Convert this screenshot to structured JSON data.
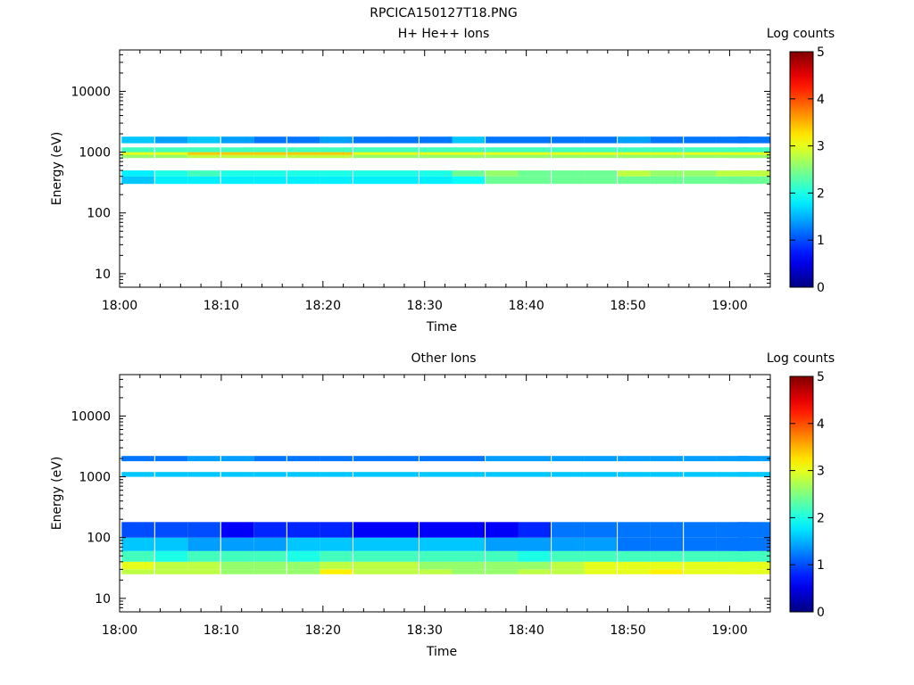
{
  "figure_title": "RPCICA150127T18.PNG",
  "chart_data": [
    {
      "type": "heatmap",
      "title": "H+ He++ Ions",
      "xlabel": "Time",
      "ylabel": "Energy (eV)",
      "x_ticks": [
        "18:00",
        "18:10",
        "18:20",
        "18:30",
        "18:40",
        "18:50",
        "19:00"
      ],
      "y_ticks": [
        "10",
        "100",
        "1000",
        "10000"
      ],
      "x_range_minutes": [
        0,
        64
      ],
      "y_range_ev": [
        6,
        48000
      ],
      "y_scale": "log",
      "colorbar": {
        "label": "Log counts",
        "ticks": [
          "0",
          "1",
          "2",
          "3",
          "4",
          "5"
        ],
        "range": [
          0,
          5
        ],
        "colormap": "jet"
      },
      "time_columns_minutes": [
        1.8,
        5.1,
        8.3,
        11.6,
        14.8,
        18.1,
        21.3,
        24.6,
        27.8,
        31.1,
        34.3,
        37.6,
        40.8,
        44.1,
        47.3,
        50.6,
        53.8,
        57.1,
        60.3,
        62.4
      ],
      "energy_bands": [
        {
          "energy_ev": [
            800,
            1000
          ],
          "log_counts": [
            2.6,
            2.6,
            2.8,
            2.8,
            2.8,
            2.8,
            2.8,
            2.6,
            2.6,
            2.6,
            2.6,
            2.6,
            2.6,
            2.6,
            2.6,
            2.6,
            2.6,
            2.6,
            2.6,
            2.6
          ]
        },
        {
          "energy_ev": [
            900,
            1000
          ],
          "log_counts": [
            3.0,
            3.0,
            3.4,
            3.4,
            3.4,
            3.4,
            3.4,
            3.0,
            3.0,
            3.0,
            3.0,
            3.0,
            3.0,
            3.0,
            3.0,
            3.0,
            3.0,
            3.0,
            3.0,
            3.0
          ]
        },
        {
          "energy_ev": [
            1000,
            1200
          ],
          "log_counts": [
            2.2,
            2.2,
            2.2,
            2.2,
            2.2,
            2.2,
            2.2,
            2.2,
            2.2,
            2.2,
            2.2,
            2.2,
            2.2,
            2.2,
            2.2,
            2.2,
            2.2,
            2.2,
            2.2,
            2.2
          ]
        },
        {
          "energy_ev": [
            1400,
            1800
          ],
          "log_counts": [
            1.6,
            1.4,
            1.6,
            1.4,
            1.2,
            1.2,
            1.4,
            1.2,
            1.2,
            1.2,
            1.6,
            1.2,
            1.2,
            1.2,
            1.2,
            1.4,
            1.2,
            1.2,
            1.2,
            1.2
          ]
        },
        {
          "energy_ev": [
            300,
            400
          ],
          "log_counts": [
            1.6,
            1.8,
            1.8,
            1.8,
            1.8,
            1.8,
            1.8,
            1.8,
            1.8,
            1.8,
            1.9,
            2.4,
            2.4,
            2.4,
            2.4,
            2.4,
            2.4,
            2.4,
            2.4,
            2.4
          ]
        },
        {
          "energy_ev": [
            400,
            500
          ],
          "log_counts": [
            1.8,
            2.0,
            2.2,
            2.0,
            2.0,
            2.0,
            2.0,
            2.0,
            2.0,
            2.0,
            2.4,
            2.6,
            2.4,
            2.4,
            2.4,
            2.8,
            2.6,
            2.6,
            2.8,
            2.8
          ]
        }
      ]
    },
    {
      "type": "heatmap",
      "title": "Other Ions",
      "xlabel": "Time",
      "ylabel": "Energy (eV)",
      "x_ticks": [
        "18:00",
        "18:10",
        "18:20",
        "18:30",
        "18:40",
        "18:50",
        "19:00"
      ],
      "y_ticks": [
        "10",
        "100",
        "1000",
        "10000"
      ],
      "x_range_minutes": [
        0,
        64
      ],
      "y_range_ev": [
        6,
        48000
      ],
      "y_scale": "log",
      "colorbar": {
        "label": "Log counts",
        "ticks": [
          "0",
          "1",
          "2",
          "3",
          "4",
          "5"
        ],
        "range": [
          0,
          5
        ],
        "colormap": "jet"
      },
      "time_columns_minutes": [
        1.8,
        5.1,
        8.3,
        11.6,
        14.8,
        18.1,
        21.3,
        24.6,
        27.8,
        31.1,
        34.3,
        37.6,
        40.8,
        44.1,
        47.3,
        50.6,
        53.8,
        57.1,
        60.3,
        62.4
      ],
      "energy_bands": [
        {
          "energy_ev": [
            25,
            30
          ],
          "log_counts": [
            2.8,
            2.8,
            2.8,
            2.6,
            2.6,
            2.6,
            3.2,
            2.8,
            2.8,
            2.8,
            2.6,
            2.6,
            2.8,
            2.8,
            3.0,
            3.0,
            3.2,
            3.0,
            3.0,
            3.0
          ]
        },
        {
          "energy_ev": [
            30,
            40
          ],
          "log_counts": [
            3.0,
            2.8,
            2.8,
            2.6,
            2.6,
            2.6,
            2.8,
            2.8,
            2.8,
            2.6,
            2.6,
            2.6,
            2.6,
            2.8,
            3.0,
            3.0,
            3.0,
            3.0,
            3.0,
            3.0
          ]
        },
        {
          "energy_ev": [
            40,
            60
          ],
          "log_counts": [
            2.2,
            2.0,
            2.2,
            2.2,
            2.2,
            2.0,
            2.2,
            2.2,
            2.2,
            2.2,
            2.2,
            2.2,
            2.0,
            2.2,
            2.2,
            2.2,
            2.2,
            2.2,
            2.2,
            2.2
          ]
        },
        {
          "energy_ev": [
            60,
            100
          ],
          "log_counts": [
            1.6,
            1.6,
            1.4,
            1.4,
            1.4,
            1.6,
            1.6,
            1.6,
            1.6,
            1.6,
            1.6,
            1.4,
            1.4,
            1.4,
            1.4,
            1.2,
            1.2,
            1.2,
            1.2,
            1.2
          ]
        },
        {
          "energy_ev": [
            100,
            180
          ],
          "log_counts": [
            1.0,
            1.0,
            1.0,
            0.6,
            0.8,
            0.8,
            0.8,
            0.6,
            0.6,
            0.6,
            0.6,
            0.6,
            0.8,
            1.2,
            1.2,
            1.2,
            1.2,
            1.2,
            1.2,
            1.2
          ]
        },
        {
          "energy_ev": [
            1000,
            1200
          ],
          "log_counts": [
            1.6,
            1.6,
            1.6,
            1.6,
            1.6,
            1.6,
            1.6,
            1.6,
            1.6,
            1.6,
            1.6,
            1.6,
            1.6,
            1.6,
            1.6,
            1.6,
            1.6,
            1.6,
            1.6,
            1.6
          ]
        },
        {
          "energy_ev": [
            1800,
            2200
          ],
          "log_counts": [
            1.2,
            1.2,
            1.4,
            1.4,
            1.2,
            1.2,
            1.2,
            1.2,
            1.2,
            1.2,
            1.2,
            1.4,
            1.4,
            1.4,
            1.4,
            1.4,
            1.4,
            1.4,
            1.4,
            1.4
          ]
        }
      ]
    }
  ]
}
